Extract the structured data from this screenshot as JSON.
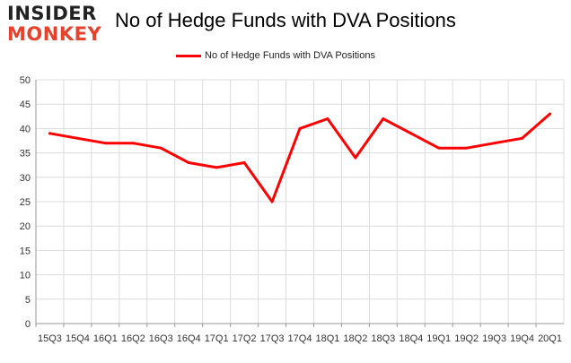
{
  "logo": {
    "line1": "INSIDER",
    "line2": "MONKEY"
  },
  "colors": {
    "series": "#ff0000",
    "grid": "#dcdcdc",
    "axis": "#999999",
    "logo_accent": "#e8412c"
  },
  "chart_data": {
    "type": "line",
    "title": "No of Hedge Funds with DVA Positions",
    "xlabel": "",
    "ylabel": "",
    "categories": [
      "15Q3",
      "15Q4",
      "16Q1",
      "16Q2",
      "16Q3",
      "16Q4",
      "17Q1",
      "17Q2",
      "17Q3",
      "17Q4",
      "18Q1",
      "18Q2",
      "18Q3",
      "18Q4",
      "19Q1",
      "19Q2",
      "19Q3",
      "19Q4",
      "20Q1"
    ],
    "series": [
      {
        "name": "No of Hedge Funds with DVA Positions",
        "values": [
          39,
          38,
          37,
          37,
          36,
          33,
          32,
          33,
          25,
          40,
          42,
          34,
          42,
          39,
          36,
          36,
          37,
          38,
          43
        ]
      }
    ],
    "ylim": [
      0,
      50
    ],
    "yticks": [
      0,
      5,
      10,
      15,
      20,
      25,
      30,
      35,
      40,
      45,
      50
    ],
    "grid": true,
    "legend": "top-center"
  }
}
